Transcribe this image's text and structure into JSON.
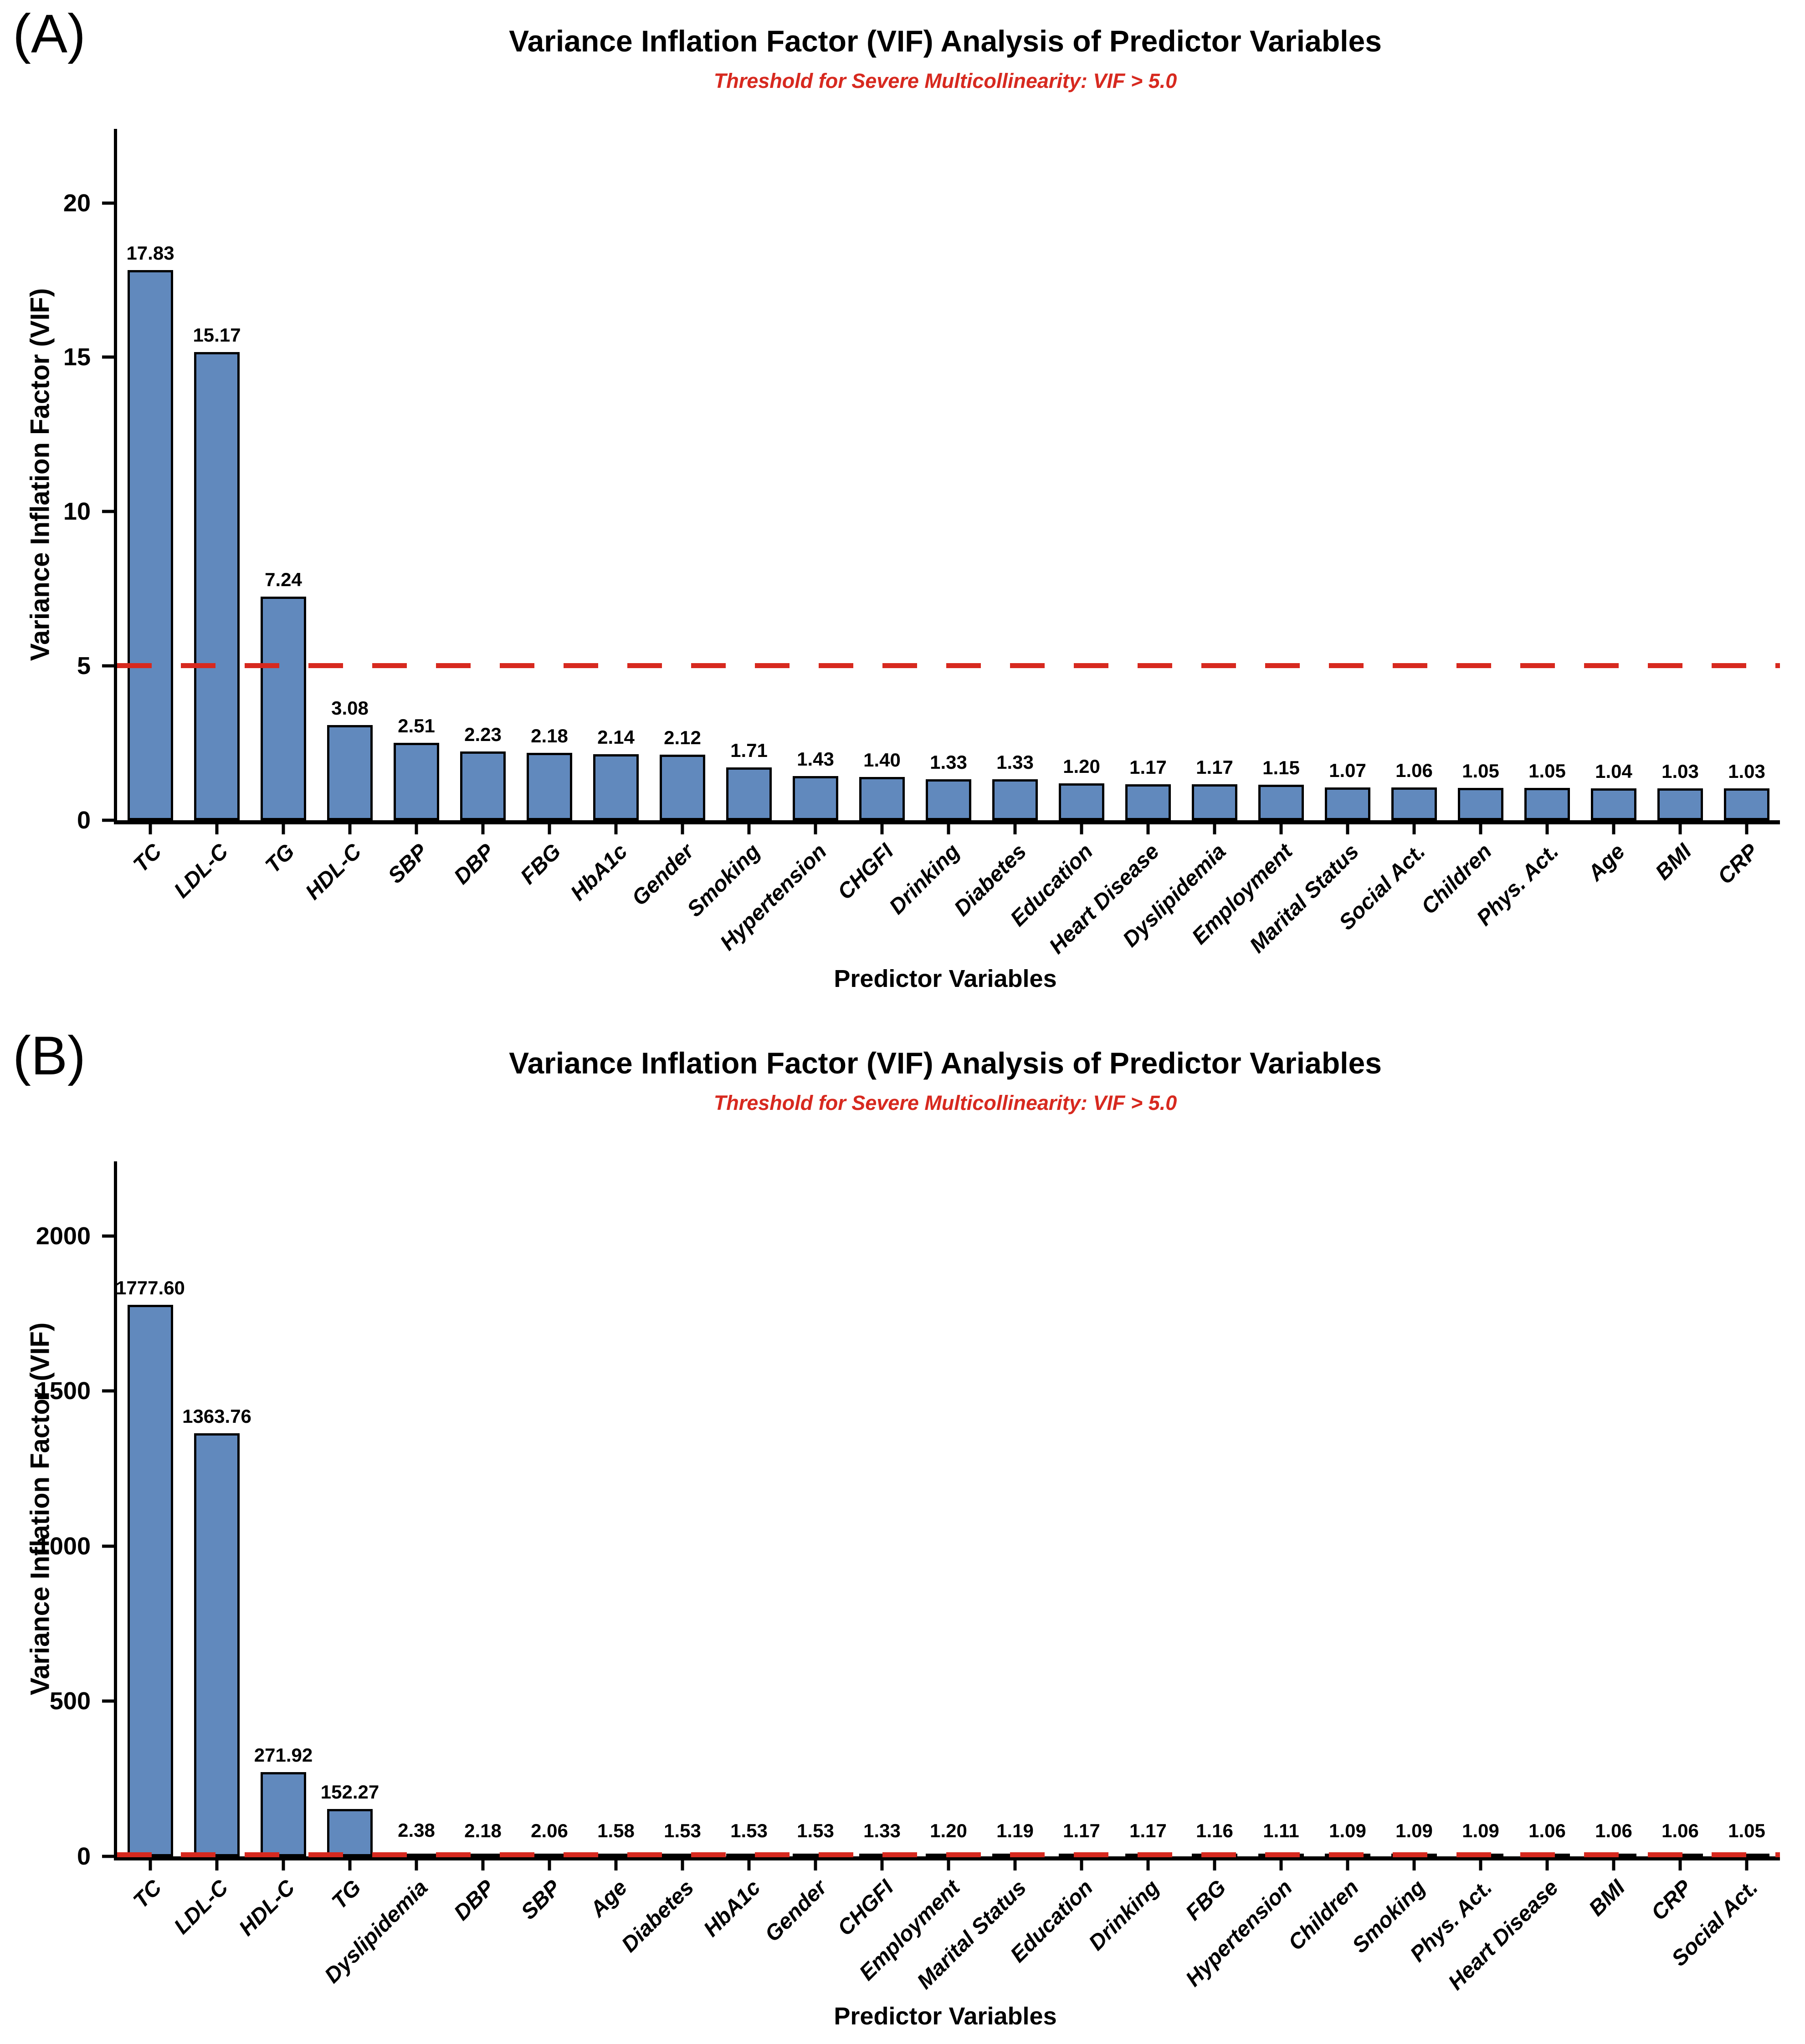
{
  "figure": {
    "background": "#ffffff",
    "bar_fill": "#6189BD",
    "bar_edge": "#000000",
    "threshold_color": "#D7291F",
    "axis_color": "#000000"
  },
  "chart_data": [
    {
      "type": "bar",
      "panel_label": "(A)",
      "title": "Variance Inflation Factor (VIF) Analysis of Predictor Variables",
      "subtitle": "Threshold for Severe Multicollinearity: VIF > 5.0",
      "xlabel": "Predictor Variables",
      "ylabel": "Variance Inflation Factor (VIF)",
      "categories": [
        "TC",
        "LDL-C",
        "TG",
        "HDL-C",
        "SBP",
        "DBP",
        "FBG",
        "HbA1c",
        "Gender",
        "Smoking",
        "Hypertension",
        "CHGFI",
        "Drinking",
        "Diabetes",
        "Education",
        "Heart Disease",
        "Dyslipidemia",
        "Employment",
        "Marital Status",
        "Social Act.",
        "Children",
        "Phys. Act.",
        "Age",
        "BMI",
        "CRP"
      ],
      "values": [
        17.83,
        15.17,
        7.24,
        3.08,
        2.51,
        2.23,
        2.18,
        2.14,
        2.12,
        1.71,
        1.43,
        1.4,
        1.33,
        1.33,
        1.2,
        1.17,
        1.17,
        1.15,
        1.07,
        1.06,
        1.05,
        1.05,
        1.04,
        1.03,
        1.03
      ],
      "bar_labels": [
        "17.83",
        "15.17",
        "7.24",
        "3.08",
        "2.51",
        "2.23",
        "2.18",
        "2.14",
        "2.12",
        "1.71",
        "1.43",
        "1.40",
        "1.33",
        "1.33",
        "1.20",
        "1.17",
        "1.17",
        "1.15",
        "1.07",
        "1.06",
        "1.05",
        "1.05",
        "1.04",
        "1.03",
        "1.03"
      ],
      "ylim": [
        0,
        22.4
      ],
      "yticks": [
        0,
        5,
        10,
        15,
        20
      ],
      "threshold_line": {
        "value": 5.0,
        "style": "dashed",
        "label": "VIF > 5.0"
      },
      "grid": false,
      "legend": false
    },
    {
      "type": "bar",
      "panel_label": "(B)",
      "title": "Variance Inflation Factor (VIF) Analysis of Predictor Variables",
      "subtitle": "Threshold for Severe Multicollinearity: VIF > 5.0",
      "xlabel": "Predictor Variables",
      "ylabel": "Variance Inflation Factor (VIF)",
      "categories": [
        "TC",
        "LDL-C",
        "HDL-C",
        "TG",
        "Dyslipidemia",
        "DBP",
        "SBP",
        "Age",
        "Diabetes",
        "HbA1c",
        "Gender",
        "CHGFI",
        "Employment",
        "Marital Status",
        "Education",
        "Drinking",
        "FBG",
        "Hypertension",
        "Children",
        "Smoking",
        "Phys. Act.",
        "Heart Disease",
        "BMI",
        "CRP",
        "Social Act."
      ],
      "values": [
        1777.6,
        1363.76,
        271.92,
        152.27,
        2.38,
        2.18,
        2.06,
        1.58,
        1.53,
        1.53,
        1.53,
        1.33,
        1.2,
        1.19,
        1.17,
        1.17,
        1.16,
        1.11,
        1.09,
        1.09,
        1.09,
        1.06,
        1.06,
        1.06,
        1.05
      ],
      "bar_labels": [
        "1777.60",
        "1363.76",
        "271.92",
        "152.27",
        "2.38",
        "2.18",
        "2.06",
        "1.58",
        "1.53",
        "1.53",
        "1.53",
        "1.33",
        "1.20",
        "1.19",
        "1.17",
        "1.17",
        "1.16",
        "1.11",
        "1.09",
        "1.09",
        "1.09",
        "1.06",
        "1.06",
        "1.06",
        "1.05"
      ],
      "ylim": [
        0,
        2240
      ],
      "yticks": [
        0,
        500,
        1000,
        1500,
        2000
      ],
      "threshold_line": {
        "value": 5.0,
        "style": "dashed",
        "label": "VIF > 5.0"
      },
      "grid": false,
      "legend": false
    }
  ]
}
